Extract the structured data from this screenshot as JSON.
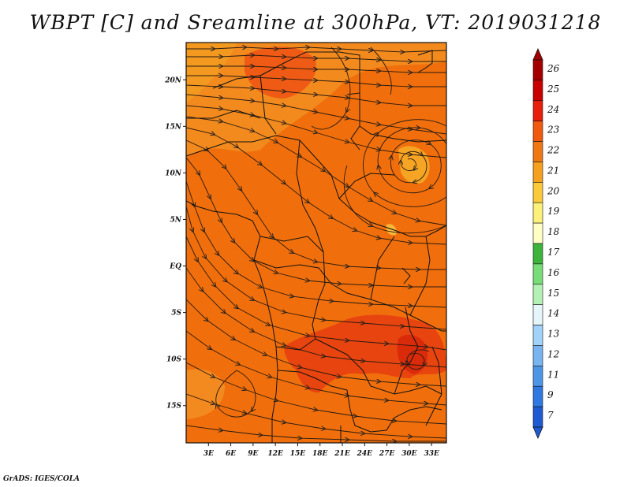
{
  "title": "WBPT [C] and Sreamline at 300hPa, VT: 2019031218",
  "credit": "GrADS: IGES/COLA",
  "map": {
    "lon_range": [
      0,
      35
    ],
    "lat_range": [
      -19,
      24
    ],
    "lat_ticks": [
      "20N",
      "15N",
      "10N",
      "5N",
      "EQ",
      "5S",
      "10S",
      "15S"
    ],
    "lon_ticks": [
      "3E",
      "6E",
      "9E",
      "12E",
      "15E",
      "18E",
      "21E",
      "24E",
      "27E",
      "30E",
      "33E"
    ],
    "base_color": "#f06f0c",
    "cyclone_label": "closed circulation near 30E 12N"
  },
  "colorbar": {
    "labels": [
      "26",
      "25",
      "24",
      "23",
      "22",
      "21",
      "20",
      "19",
      "18",
      "17",
      "16",
      "15",
      "14",
      "13",
      "12",
      "11",
      "9",
      "7"
    ],
    "colors": [
      "#a50000",
      "#c90000",
      "#e61e0a",
      "#f05a0f",
      "#f07814",
      "#f5a01e",
      "#faca3c",
      "#faf07a",
      "#ffffc4",
      "#3cb43c",
      "#78dc78",
      "#b4f0b4",
      "#e6f5fa",
      "#a0d2fa",
      "#78b4f0",
      "#4b96e6",
      "#2d78e1",
      "#1e5ad2"
    ]
  }
}
